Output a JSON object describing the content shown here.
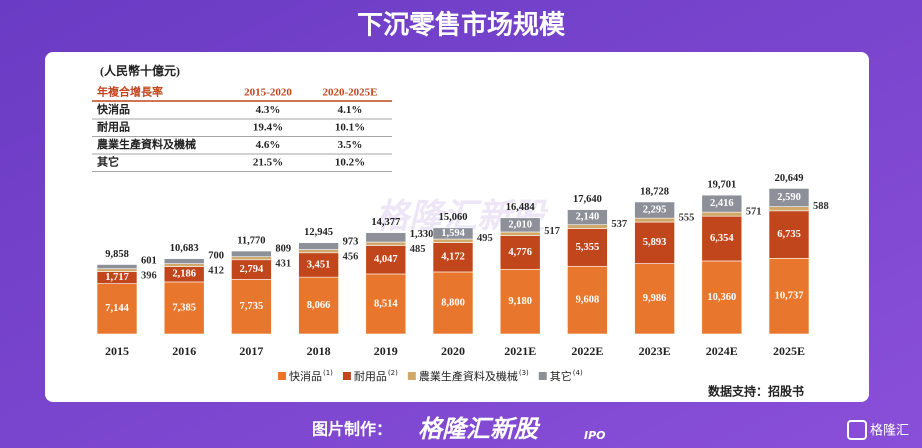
{
  "header": {
    "title": "下沉零售市场规模"
  },
  "chart_data": {
    "type": "stacked-bar",
    "unit": "(人民幣十億元)",
    "categories": [
      "2015",
      "2016",
      "2017",
      "2018",
      "2019",
      "2020",
      "2021E",
      "2022E",
      "2023E",
      "2024E",
      "2025E"
    ],
    "series": [
      {
        "name": "快消品",
        "note": "(1)",
        "color": "#e8762c",
        "values": [
          7144,
          7385,
          7735,
          8066,
          8514,
          8800,
          9180,
          9608,
          9986,
          10360,
          10737
        ],
        "value_labels": [
          "7,144",
          "7,385",
          "7,735",
          "8,066",
          "8,514",
          "8,800",
          "9,180",
          "9,608",
          "9,986",
          "10,360",
          "10,737"
        ]
      },
      {
        "name": "耐用品",
        "note": "(2)",
        "color": "#c2461b",
        "values": [
          1717,
          2186,
          2794,
          3451,
          4047,
          4172,
          4776,
          5355,
          5893,
          6354,
          6735
        ],
        "value_labels": [
          "1,717",
          "2,186",
          "2,794",
          "3,451",
          "4,047",
          "4,172",
          "4,776",
          "5,355",
          "5,893",
          "6,354",
          "6,735"
        ]
      },
      {
        "name": "農業生產資料及機械",
        "note": "(3)",
        "color": "#cfa86a",
        "values": [
          396,
          412,
          431,
          456,
          485,
          495,
          517,
          537,
          555,
          571,
          588
        ]
      },
      {
        "name": "其它",
        "note": "(4)",
        "color": "#8d9099",
        "values": [
          601,
          700,
          809,
          973,
          1330,
          1594,
          2010,
          2140,
          2295,
          2416,
          2590
        ],
        "value_labels": [
          "601",
          "700",
          "809",
          "973",
          "1,330",
          "1,594",
          "2,010",
          "2,140",
          "2,295",
          "2,416",
          "2,590"
        ]
      }
    ],
    "totals": {
      "values": [
        9858,
        10683,
        11770,
        12945,
        14377,
        15060,
        16484,
        17640,
        18728,
        19701,
        20649
      ],
      "value_labels": [
        "9,858",
        "10,683",
        "11,770",
        "12,945",
        "14,377",
        "15,060",
        "16,484",
        "17,640",
        "18,728",
        "19,701",
        "20,649"
      ]
    },
    "source": "数据支持：招股书",
    "watermark": "格隆汇新股"
  },
  "table": {
    "header": [
      "年複合增長率",
      "2015-2020",
      "2020-2025E"
    ],
    "rows": [
      [
        "快消品",
        "4.3%",
        "4.1%"
      ],
      [
        "耐用品",
        "19.4%",
        "10.1%"
      ],
      [
        "農業生產資料及機械",
        "4.6%",
        "3.5%"
      ],
      [
        "其它",
        "21.5%",
        "10.2%"
      ]
    ]
  },
  "footer": {
    "credit": "图片制作：",
    "brand": "格隆汇新股",
    "brand_tag": "IPO",
    "logo": "格隆汇"
  }
}
